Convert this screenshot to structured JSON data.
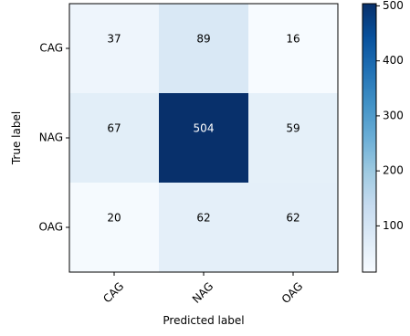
{
  "chart_data": {
    "type": "heatmap",
    "title": "",
    "xlabel": "Predicted label",
    "ylabel": "True label",
    "x_categories": [
      "CAG",
      "NAG",
      "OAG"
    ],
    "y_categories": [
      "CAG",
      "NAG",
      "OAG"
    ],
    "values": [
      [
        37,
        89,
        16
      ],
      [
        67,
        504,
        59
      ],
      [
        20,
        62,
        62
      ]
    ],
    "colormap": "Blues",
    "color_range": [
      16,
      504
    ],
    "colorbar": {
      "ticks": [
        "100",
        "200",
        "300",
        "400",
        "500"
      ],
      "tick_values": [
        100,
        200,
        300,
        400,
        500
      ]
    },
    "x_tick_rotation": 45,
    "grid": false
  }
}
